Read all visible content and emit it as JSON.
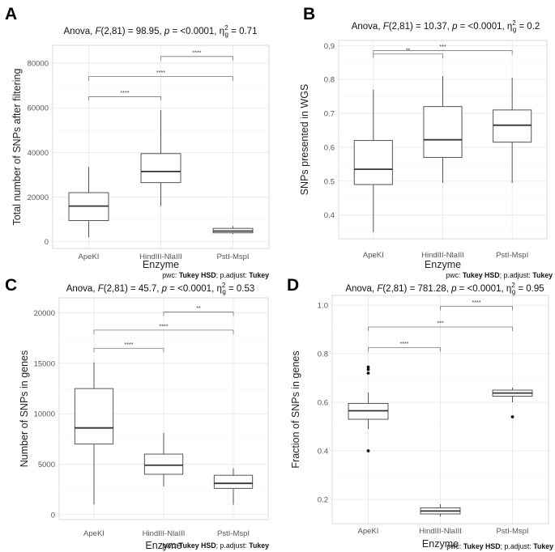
{
  "stats_label": {
    "anova": "Anova,",
    "F": "F",
    "p": "p",
    "eta": "η",
    "eta_sup": "2",
    "eta_sub": "g"
  },
  "pwc_label": {
    "prefix": "pwc: ",
    "method": "Tukey HSD",
    "mid": "; p.adjust: ",
    "adjust": "Tukey"
  },
  "chart_data": [
    {
      "panel": "A",
      "type": "boxplot",
      "anova": {
        "df": "(2,81)",
        "F": "98.95",
        "p": "<0.0001",
        "eta2g": "0.71"
      },
      "categories": [
        "ApeKI",
        "HindIII-NlaIII",
        "PstI-MspI"
      ],
      "boxes": [
        {
          "min": 2000,
          "q1": 9500,
          "median": 16000,
          "q3": 22000,
          "max": 33500,
          "outliers": []
        },
        {
          "min": 16000,
          "q1": 26500,
          "median": 31500,
          "q3": 39500,
          "max": 59000,
          "outliers": []
        },
        {
          "min": 3500,
          "q1": 4000,
          "median": 4800,
          "q3": 6000,
          "max": 7000,
          "outliers": []
        }
      ],
      "brackets": [
        {
          "from": 0,
          "to": 1,
          "y": 65000,
          "label": "****"
        },
        {
          "from": 0,
          "to": 2,
          "y": 74000,
          "label": "****"
        },
        {
          "from": 1,
          "to": 2,
          "y": 83000,
          "label": "****"
        }
      ],
      "ylim": [
        -3000,
        88000
      ],
      "yticks": [
        0,
        20000,
        40000,
        60000,
        80000
      ],
      "ymajor": [
        0,
        20000,
        40000,
        60000,
        80000
      ],
      "yminor": [
        10000,
        30000,
        50000,
        70000
      ],
      "xlabel": "Enzyme",
      "ylabel": "Total number of SNPs after filtering"
    },
    {
      "panel": "B",
      "type": "boxplot",
      "anova": {
        "df": "(2,81)",
        "F": "10.37",
        "p": "<0.0001",
        "eta2g": "0.2"
      },
      "categories": [
        "ApeKI",
        "HindIII-NlaIII",
        "PstI-MspI"
      ],
      "boxes": [
        {
          "min": 0.35,
          "q1": 0.49,
          "median": 0.535,
          "q3": 0.62,
          "max": 0.77,
          "outliers": []
        },
        {
          "min": 0.495,
          "q1": 0.57,
          "median": 0.622,
          "q3": 0.72,
          "max": 0.81,
          "outliers": []
        },
        {
          "min": 0.495,
          "q1": 0.615,
          "median": 0.665,
          "q3": 0.71,
          "max": 0.805,
          "outliers": []
        }
      ],
      "brackets": [
        {
          "from": 0,
          "to": 1,
          "y": 0.875,
          "label": "**"
        },
        {
          "from": 0,
          "to": 2,
          "y": 0.885,
          "label": "***"
        }
      ],
      "ylim": [
        0.33,
        0.915
      ],
      "yticks": [
        0.4,
        0.5,
        0.6,
        0.7,
        0.8,
        0.9
      ],
      "ymajor": [
        0.4,
        0.5,
        0.6,
        0.7,
        0.8,
        0.9
      ],
      "yminor": [
        0.35,
        0.45,
        0.55,
        0.65,
        0.75,
        0.85
      ],
      "xlabel": "Enzyme",
      "ylabel": "SNPs presented in WGS"
    },
    {
      "panel": "C",
      "type": "boxplot",
      "anova": {
        "df": "(2,81)",
        "F": "45.7",
        "p": "<0.0001",
        "eta2g": "0.53"
      },
      "categories": [
        "ApeKI",
        "HindIII-NlaIII",
        "PstI-MspI"
      ],
      "boxes": [
        {
          "min": 1000,
          "q1": 7000,
          "median": 8600,
          "q3": 12500,
          "max": 15100,
          "outliers": []
        },
        {
          "min": 2800,
          "q1": 4000,
          "median": 4900,
          "q3": 6000,
          "max": 8100,
          "outliers": []
        },
        {
          "min": 1000,
          "q1": 2600,
          "median": 3100,
          "q3": 3900,
          "max": 4600,
          "outliers": []
        }
      ],
      "brackets": [
        {
          "from": 0,
          "to": 1,
          "y": 16500,
          "label": "****"
        },
        {
          "from": 0,
          "to": 2,
          "y": 18300,
          "label": "****"
        },
        {
          "from": 1,
          "to": 2,
          "y": 20100,
          "label": "**"
        }
      ],
      "ylim": [
        -500,
        21500
      ],
      "yticks": [
        0,
        5000,
        10000,
        15000,
        20000
      ],
      "ymajor": [
        0,
        5000,
        10000,
        15000,
        20000
      ],
      "yminor": [
        2500,
        7500,
        12500,
        17500
      ],
      "xlabel": "Enzyme",
      "ylabel": "Number of SNPs in genes"
    },
    {
      "panel": "D",
      "type": "boxplot",
      "anova": {
        "df": "(2,81)",
        "F": "781.28",
        "p": "<0.0001",
        "eta2g": "0.95"
      },
      "categories": [
        "ApeKI",
        "HindIII-NlaIII",
        "PstI-MspI"
      ],
      "boxes": [
        {
          "min": 0.49,
          "q1": 0.53,
          "median": 0.565,
          "q3": 0.595,
          "max": 0.64,
          "outliers": [
            0.4,
            0.72,
            0.735,
            0.745
          ]
        },
        {
          "min": 0.13,
          "q1": 0.14,
          "median": 0.152,
          "q3": 0.165,
          "max": 0.18,
          "outliers": []
        },
        {
          "min": 0.6,
          "q1": 0.625,
          "median": 0.638,
          "q3": 0.65,
          "max": 0.66,
          "outliers": [
            0.54
          ]
        }
      ],
      "brackets": [
        {
          "from": 0,
          "to": 1,
          "y": 0.825,
          "label": "****"
        },
        {
          "from": 0,
          "to": 2,
          "y": 0.91,
          "label": "***"
        },
        {
          "from": 1,
          "to": 2,
          "y": 0.995,
          "label": "****"
        }
      ],
      "ylim": [
        0.1,
        1.04
      ],
      "yticks": [
        0.2,
        0.4,
        0.6,
        0.8,
        1.0
      ],
      "ytick_labels": [
        "0.2",
        "0.4",
        "0.6",
        "0.8",
        "1.0"
      ],
      "ymajor": [
        0.2,
        0.4,
        0.6,
        0.8,
        1.0
      ],
      "yminor": [
        0.3,
        0.5,
        0.7,
        0.9
      ],
      "xlabel": "Enzyme",
      "ylabel": "Fraction of SNPs in genes"
    }
  ]
}
